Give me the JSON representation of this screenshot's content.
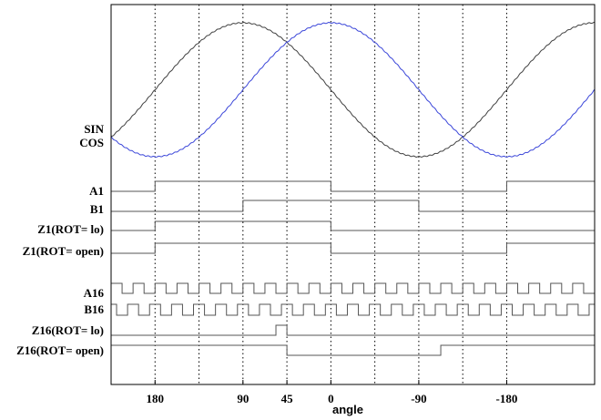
{
  "chart_data": {
    "type": "line",
    "title": "",
    "xlabel": "angle",
    "ylabel": "",
    "x_axis": {
      "direction": "descending",
      "range": [
        225,
        -270
      ],
      "tick_values": [
        180,
        90,
        45,
        0,
        -90,
        -180
      ],
      "tick_labels": [
        "180",
        "90",
        "45",
        "0",
        "-90",
        "-180"
      ],
      "gridlines": [
        180,
        135,
        90,
        45,
        0,
        -45,
        -90,
        -135,
        -180
      ],
      "grid": "vertical dotted"
    },
    "analog_signals": {
      "label_sin": "SIN",
      "label_cos": "COS",
      "series": [
        {
          "key": "sin",
          "color": "#404040",
          "amplitude": 1,
          "peak_angle": 90
        },
        {
          "key": "cos",
          "color": "#3b46d9",
          "amplitude": 1,
          "peak_angle": 0
        }
      ]
    },
    "digital_signals": [
      {
        "label": "A1",
        "initial": 0,
        "transitions": [
          180,
          0,
          -180
        ]
      },
      {
        "label": "B1",
        "initial": 0,
        "transitions": [
          90,
          -90
        ]
      },
      {
        "label": "Z1(ROT= lo)",
        "initial": 0,
        "transitions": [
          180,
          0
        ]
      },
      {
        "label": "Z1(ROT= open)",
        "initial": 1,
        "transitions": [
          180,
          0,
          -180
        ]
      },
      {
        "label": "A16",
        "initial": 1,
        "period_deg": 22.5,
        "duty": 0.5,
        "high_start": 225
      },
      {
        "label": "B16",
        "initial": 1,
        "period_deg": 22.5,
        "duty": 0.5,
        "high_start": 219.375
      },
      {
        "label": "Z16(ROT= lo)",
        "initial": 0,
        "transitions": [
          56.25,
          45
        ]
      },
      {
        "label": "Z16(ROT= open)",
        "initial": 1,
        "transitions": [
          45,
          -112.5
        ]
      }
    ],
    "colors": {
      "digital": "#555555",
      "grid": "#000000",
      "frame": "#000000"
    }
  }
}
